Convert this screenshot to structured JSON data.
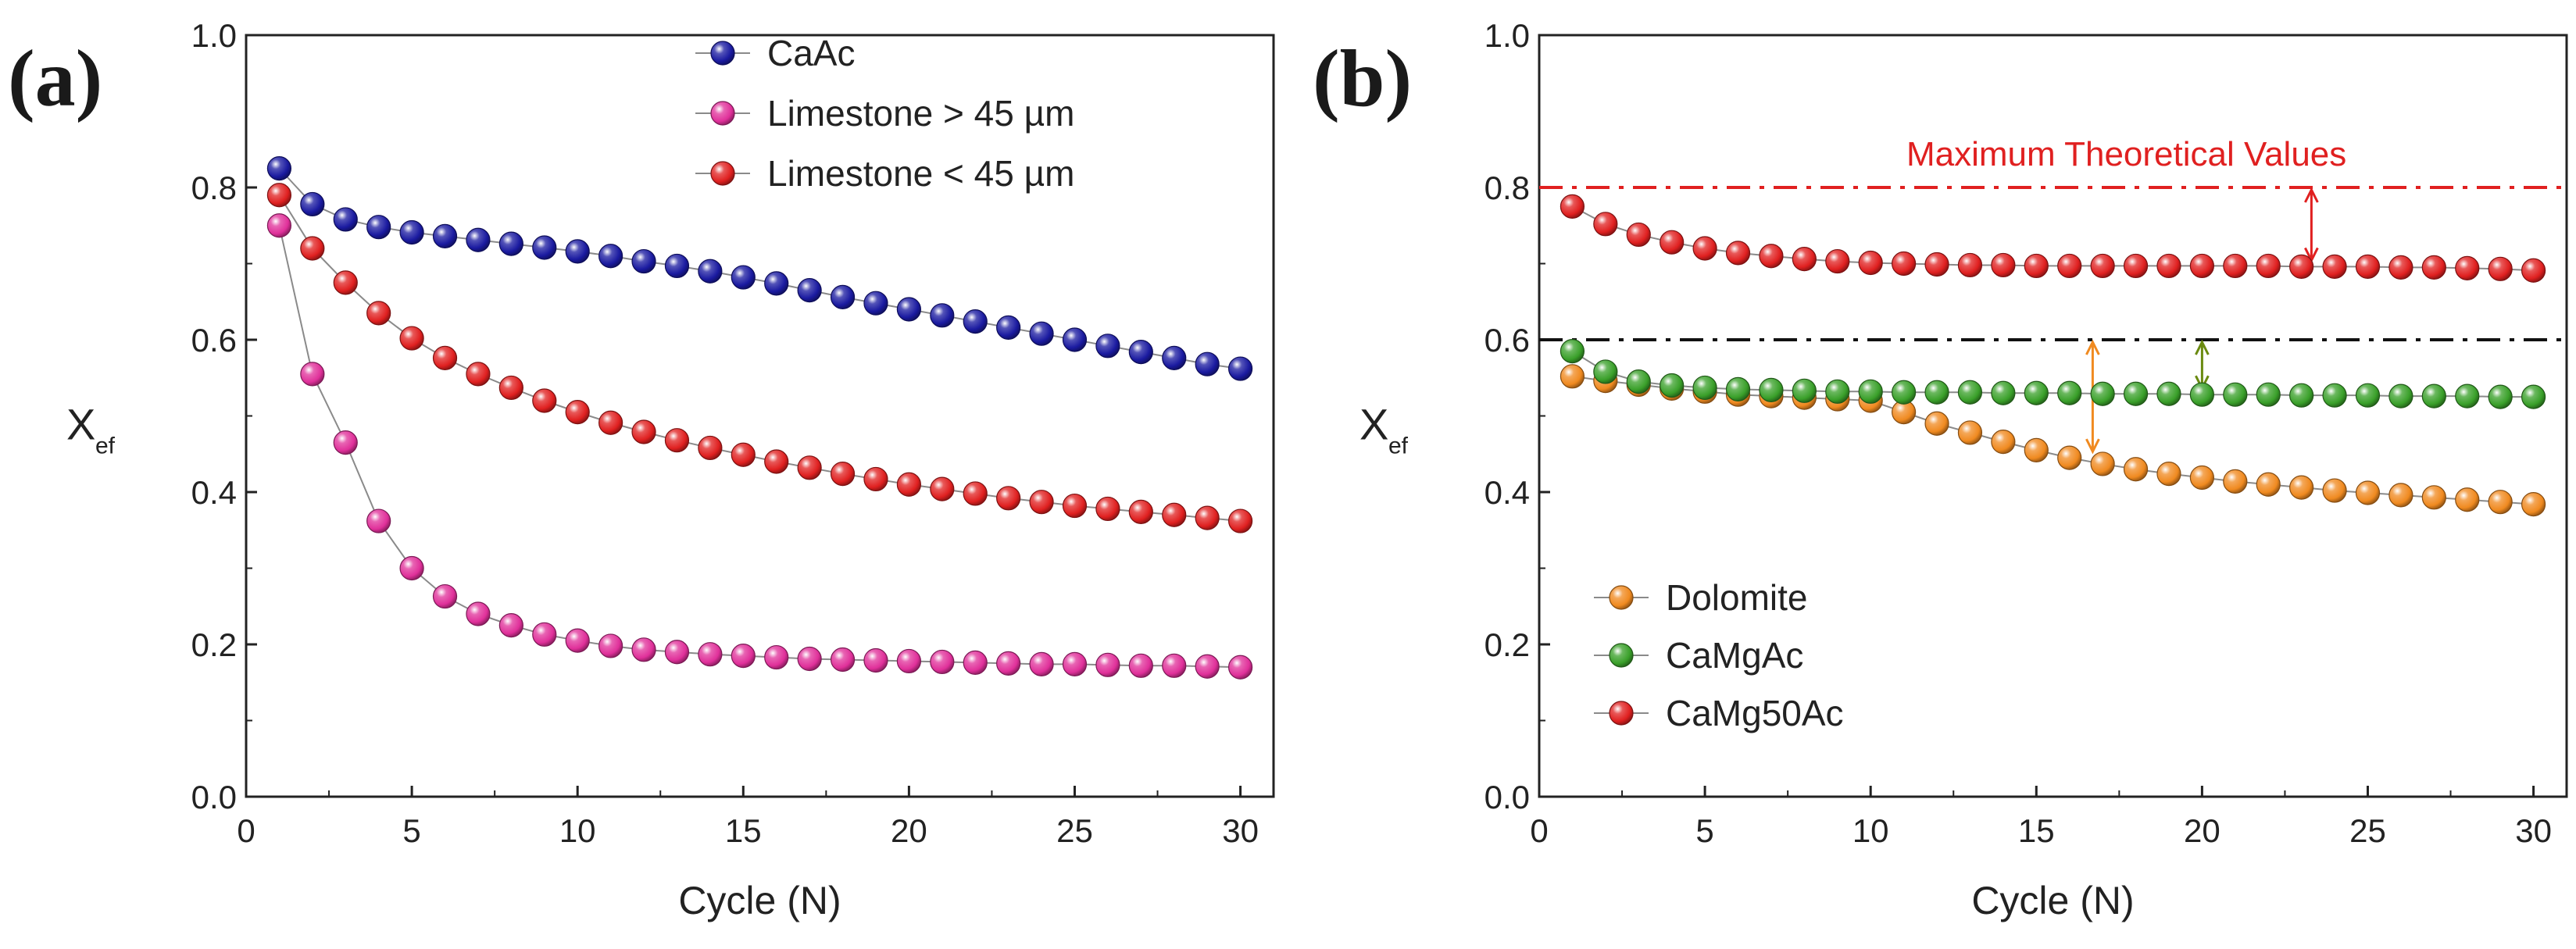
{
  "chart_data": [
    {
      "type": "scatter",
      "panel_label": "(a)",
      "xlabel": "Cycle (N)",
      "ylabel_main": "X",
      "ylabel_sub": "ef",
      "xlim": [
        0,
        31
      ],
      "ylim": [
        0,
        1.0
      ],
      "xticks": [
        0,
        5,
        10,
        15,
        20,
        25,
        30
      ],
      "yticks": [
        0.0,
        0.2,
        0.4,
        0.6,
        0.8,
        1.0
      ],
      "xtick_labels": [
        "0",
        "5",
        "10",
        "15",
        "20",
        "25",
        "30"
      ],
      "ytick_labels": [
        "0.0",
        "0.2",
        "0.4",
        "0.6",
        "0.8",
        "1.0"
      ],
      "legend_position": "top-right",
      "x": [
        1,
        2,
        3,
        4,
        5,
        6,
        7,
        8,
        9,
        10,
        11,
        12,
        13,
        14,
        15,
        16,
        17,
        18,
        19,
        20,
        21,
        22,
        23,
        24,
        25,
        26,
        27,
        28,
        29,
        30
      ],
      "series": [
        {
          "name": "CaAc",
          "color": "#1a1aa0",
          "values": [
            0.825,
            0.778,
            0.758,
            0.748,
            0.741,
            0.736,
            0.731,
            0.726,
            0.721,
            0.716,
            0.71,
            0.703,
            0.697,
            0.69,
            0.682,
            0.674,
            0.665,
            0.656,
            0.648,
            0.64,
            0.632,
            0.624,
            0.616,
            0.608,
            0.6,
            0.592,
            0.584,
            0.576,
            0.568,
            0.562
          ]
        },
        {
          "name": "Limestone > 45 µm",
          "color": "#e0309a",
          "values": [
            0.75,
            0.555,
            0.465,
            0.362,
            0.3,
            0.263,
            0.24,
            0.225,
            0.213,
            0.205,
            0.198,
            0.193,
            0.19,
            0.187,
            0.185,
            0.183,
            0.181,
            0.18,
            0.179,
            0.178,
            0.177,
            0.176,
            0.175,
            0.174,
            0.174,
            0.173,
            0.172,
            0.172,
            0.171,
            0.17
          ]
        },
        {
          "name": "Limestone < 45 µm",
          "color": "#e02020",
          "values": [
            0.79,
            0.72,
            0.675,
            0.635,
            0.602,
            0.576,
            0.555,
            0.537,
            0.52,
            0.505,
            0.491,
            0.479,
            0.468,
            0.458,
            0.449,
            0.44,
            0.432,
            0.424,
            0.417,
            0.41,
            0.404,
            0.398,
            0.392,
            0.387,
            0.382,
            0.378,
            0.374,
            0.37,
            0.366,
            0.362
          ]
        }
      ]
    },
    {
      "type": "scatter",
      "panel_label": "(b)",
      "xlabel": "Cycle (N)",
      "ylabel_main": "X",
      "ylabel_sub": "ef",
      "xlim": [
        0,
        31
      ],
      "ylim": [
        0,
        1.0
      ],
      "xticks": [
        0,
        5,
        10,
        15,
        20,
        25,
        30
      ],
      "yticks": [
        0.0,
        0.2,
        0.4,
        0.6,
        0.8,
        1.0
      ],
      "xtick_labels": [
        "0",
        "5",
        "10",
        "15",
        "20",
        "25",
        "30"
      ],
      "ytick_labels": [
        "0.0",
        "0.2",
        "0.4",
        "0.6",
        "0.8",
        "1.0"
      ],
      "legend_position": "bottom-left",
      "annotation": "Maximum Theoretical Values",
      "reference_lines": [
        {
          "y": 0.8,
          "color": "#e02020"
        },
        {
          "y": 0.6,
          "color": "#111111"
        }
      ],
      "x": [
        1,
        2,
        3,
        4,
        5,
        6,
        7,
        8,
        9,
        10,
        11,
        12,
        13,
        14,
        15,
        16,
        17,
        18,
        19,
        20,
        21,
        22,
        23,
        24,
        25,
        26,
        27,
        28,
        29,
        30
      ],
      "series": [
        {
          "name": "Dolomite",
          "color": "#f08a20",
          "values": [
            0.552,
            0.546,
            0.541,
            0.536,
            0.532,
            0.528,
            0.526,
            0.524,
            0.522,
            0.52,
            0.505,
            0.49,
            0.478,
            0.466,
            0.455,
            0.445,
            0.437,
            0.43,
            0.424,
            0.419,
            0.414,
            0.41,
            0.406,
            0.402,
            0.399,
            0.396,
            0.393,
            0.39,
            0.387,
            0.384
          ]
        },
        {
          "name": "CaMgAc",
          "color": "#3aa02a",
          "values": [
            0.585,
            0.558,
            0.545,
            0.54,
            0.537,
            0.535,
            0.534,
            0.533,
            0.532,
            0.532,
            0.531,
            0.531,
            0.531,
            0.53,
            0.53,
            0.53,
            0.529,
            0.529,
            0.529,
            0.528,
            0.528,
            0.528,
            0.527,
            0.527,
            0.527,
            0.526,
            0.526,
            0.526,
            0.525,
            0.525
          ]
        },
        {
          "name": "CaMg50Ac",
          "color": "#e02020",
          "values": [
            0.775,
            0.752,
            0.738,
            0.728,
            0.72,
            0.714,
            0.71,
            0.706,
            0.703,
            0.701,
            0.7,
            0.699,
            0.698,
            0.698,
            0.697,
            0.697,
            0.697,
            0.697,
            0.697,
            0.697,
            0.697,
            0.697,
            0.696,
            0.696,
            0.696,
            0.695,
            0.695,
            0.694,
            0.693,
            0.691
          ]
        }
      ]
    }
  ]
}
